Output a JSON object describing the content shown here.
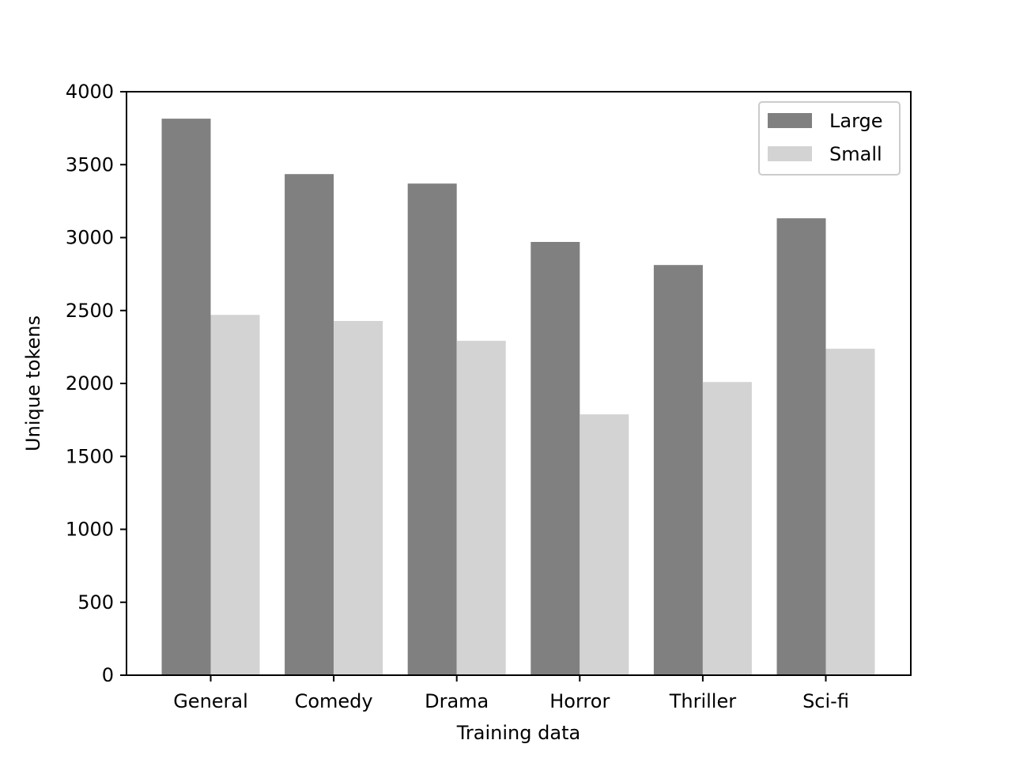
{
  "chart_data": {
    "type": "bar",
    "title": "",
    "xlabel": "Training data",
    "ylabel": "Unique tokens",
    "categories": [
      "General",
      "Comedy",
      "Drama",
      "Horror",
      "Thriller",
      "Sci-fi"
    ],
    "series": [
      {
        "name": "Large",
        "color": "#808080",
        "values": [
          3815,
          3435,
          3370,
          2970,
          2812,
          3132
        ]
      },
      {
        "name": "Small",
        "color": "#d3d3d3",
        "values": [
          2470,
          2428,
          2292,
          1788,
          2010,
          2238
        ]
      }
    ],
    "ylim": [
      0,
      4000
    ],
    "yticks": [
      "0",
      "500",
      "1000",
      "1500",
      "2000",
      "2500",
      "3000",
      "3500",
      "4000"
    ],
    "grid": false,
    "legend_position": "top-right"
  }
}
